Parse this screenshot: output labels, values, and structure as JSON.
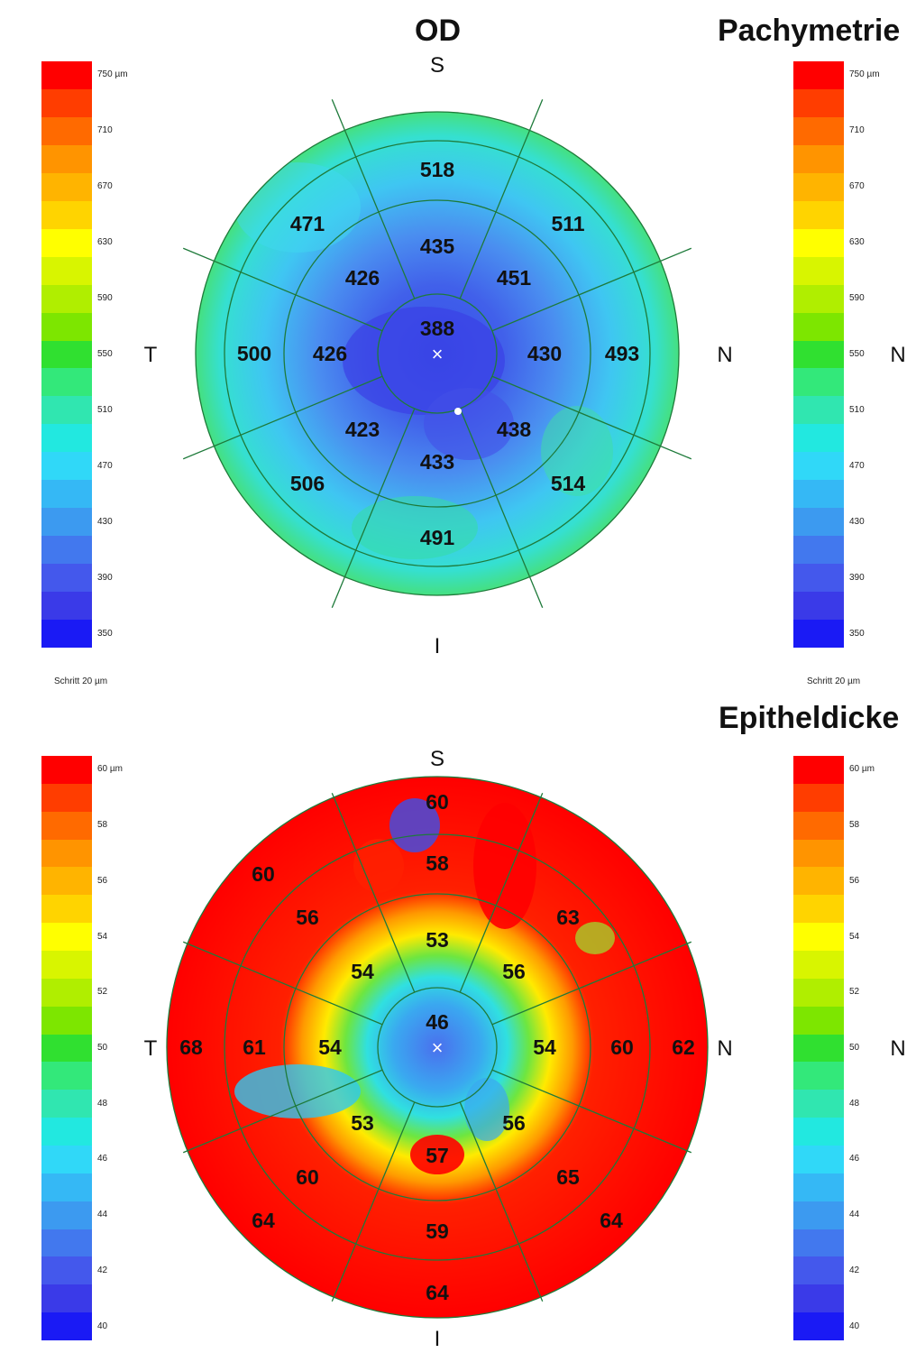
{
  "titles": {
    "eye": "OD",
    "pachymetry": "Pachymetrie",
    "epithelium": "Epitheldicke"
  },
  "orientation": {
    "superior": "S",
    "inferior": "I",
    "temporal": "T",
    "nasal": "N"
  },
  "pachymetry_scale": {
    "ticks": [
      "750 µm",
      "710",
      "670",
      "630",
      "590",
      "550",
      "510",
      "470",
      "430",
      "390",
      "350"
    ],
    "colors": [
      "#ff0000",
      "#ff3d00",
      "#ff6a00",
      "#ff9400",
      "#ffb400",
      "#ffd400",
      "#ffff00",
      "#d8f500",
      "#b0ee00",
      "#7de600",
      "#30e030",
      "#33e87a",
      "#30e6b0",
      "#22e8e0",
      "#30d8f8",
      "#35b8f5",
      "#3c9af0",
      "#4278ee",
      "#4458ec",
      "#3a3ae8",
      "#1a1af5"
    ],
    "step": "Schritt 20 µm"
  },
  "epithelium_scale": {
    "ticks": [
      "60 µm",
      "58",
      "56",
      "54",
      "52",
      "50",
      "48",
      "46",
      "44",
      "42",
      "40"
    ],
    "colors": [
      "#ff0000",
      "#ff3d00",
      "#ff6a00",
      "#ff9400",
      "#ffb400",
      "#ffd400",
      "#ffff00",
      "#d8f500",
      "#b0ee00",
      "#7de600",
      "#30e030",
      "#33e87a",
      "#30e6b0",
      "#22e8e0",
      "#30d8f8",
      "#35b8f5",
      "#3c9af0",
      "#4278ee",
      "#4458ec",
      "#3a3ae8",
      "#1a1af5"
    ]
  },
  "pachymetry_values": {
    "center": "388",
    "inner": {
      "s": "435",
      "sn": "451",
      "n": "430",
      "in": "438",
      "i": "433",
      "it": "423",
      "t": "426",
      "st": "426"
    },
    "outer": {
      "s": "518",
      "sn": "511",
      "n": "493",
      "in": "514",
      "i": "491",
      "it": "506",
      "t": "500",
      "st": "471"
    }
  },
  "epithelium_values": {
    "center": "46",
    "inner": {
      "s": "53",
      "sn": "56",
      "n": "54",
      "in": "56",
      "i": "57",
      "it": "53",
      "t": "54",
      "st": "54"
    },
    "middle": {
      "s": "58",
      "sn": "63",
      "n": "60",
      "in": "65",
      "i": "59",
      "it": "60",
      "t": "61",
      "st": "56"
    },
    "outer": {
      "s": "60",
      "n": "62",
      "in": "64",
      "i": "64",
      "it": "64",
      "t": "68",
      "st": "60"
    }
  }
}
